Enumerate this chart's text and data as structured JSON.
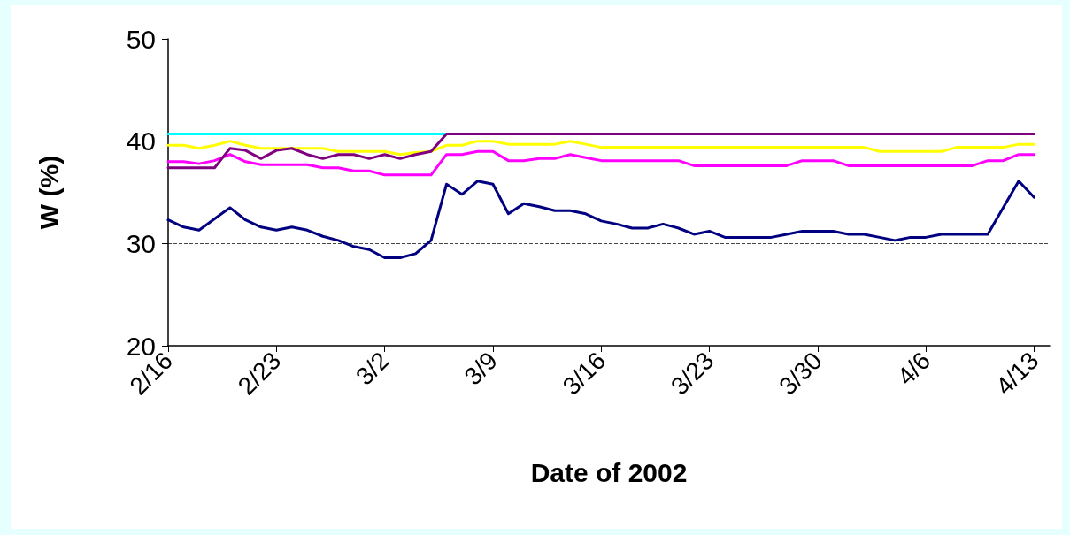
{
  "chart_data": {
    "type": "line",
    "xlabel": "Date of 2002",
    "ylabel": "W (%)",
    "x": [
      "2002-02-16",
      "2002-02-17",
      "2002-02-18",
      "2002-02-19",
      "2002-02-20",
      "2002-02-21",
      "2002-02-22",
      "2002-02-23",
      "2002-02-24",
      "2002-02-25",
      "2002-02-26",
      "2002-02-27",
      "2002-02-28",
      "2002-03-01",
      "2002-03-02",
      "2002-03-03",
      "2002-03-04",
      "2002-03-05",
      "2002-03-06",
      "2002-03-07",
      "2002-03-08",
      "2002-03-09",
      "2002-03-10",
      "2002-03-11",
      "2002-03-12",
      "2002-03-13",
      "2002-03-14",
      "2002-03-15",
      "2002-03-16",
      "2002-03-17",
      "2002-03-18",
      "2002-03-19",
      "2002-03-20",
      "2002-03-21",
      "2002-03-22",
      "2002-03-23",
      "2002-03-24",
      "2002-03-25",
      "2002-03-26",
      "2002-03-27",
      "2002-03-28",
      "2002-03-29",
      "2002-03-30",
      "2002-03-31",
      "2002-04-01",
      "2002-04-02",
      "2002-04-03",
      "2002-04-04",
      "2002-04-05",
      "2002-04-06",
      "2002-04-07",
      "2002-04-08",
      "2002-04-09",
      "2002-04-10",
      "2002-04-11",
      "2002-04-12",
      "2002-04-13"
    ],
    "series": [
      {
        "color": "#00ffff",
        "values": [
          40.7,
          40.7,
          40.7,
          40.7,
          40.7,
          40.7,
          40.7,
          40.7,
          40.7,
          40.7,
          40.7,
          40.7,
          40.7,
          40.7,
          40.7,
          40.7,
          40.7,
          40.7,
          40.7,
          null,
          null,
          null,
          null,
          null,
          null,
          null,
          null,
          null,
          null,
          null,
          null,
          null,
          null,
          null,
          null,
          null,
          null,
          null,
          null,
          null,
          null,
          null,
          null,
          null,
          null,
          null,
          null,
          null,
          null,
          null,
          null,
          null,
          null,
          null,
          null,
          null,
          null
        ]
      },
      {
        "color": "#ffff00",
        "values": [
          39.6,
          39.6,
          39.3,
          39.6,
          40.0,
          39.6,
          39.3,
          39.3,
          39.3,
          39.3,
          39.3,
          39.0,
          39.0,
          39.0,
          39.0,
          38.7,
          38.9,
          39.0,
          39.6,
          39.6,
          40.0,
          40.0,
          39.7,
          39.7,
          39.7,
          39.7,
          40.0,
          39.7,
          39.4,
          39.4,
          39.4,
          39.4,
          39.4,
          39.4,
          39.4,
          39.4,
          39.4,
          39.4,
          39.4,
          39.4,
          39.4,
          39.4,
          39.4,
          39.4,
          39.4,
          39.4,
          39.0,
          39.0,
          39.0,
          39.0,
          39.0,
          39.4,
          39.4,
          39.4,
          39.4,
          39.7,
          39.7
        ]
      },
      {
        "color": "#ff00ff",
        "values": [
          38.0,
          38.0,
          37.8,
          38.1,
          38.7,
          38.0,
          37.7,
          37.7,
          37.7,
          37.7,
          37.4,
          37.4,
          37.1,
          37.1,
          36.7,
          36.7,
          36.7,
          36.7,
          38.7,
          38.7,
          39.0,
          39.0,
          38.1,
          38.1,
          38.3,
          38.3,
          38.7,
          38.4,
          38.1,
          38.1,
          38.1,
          38.1,
          38.1,
          38.1,
          37.6,
          37.6,
          37.6,
          37.6,
          37.6,
          37.6,
          37.6,
          38.1,
          38.1,
          38.1,
          37.6,
          37.6,
          37.6,
          37.6,
          37.6,
          37.6,
          37.6,
          37.6,
          37.6,
          38.1,
          38.1,
          38.7,
          38.7
        ]
      },
      {
        "color": "#800080",
        "values": [
          37.4,
          37.4,
          37.4,
          37.4,
          39.3,
          39.1,
          38.3,
          39.1,
          39.3,
          38.7,
          38.3,
          38.7,
          38.7,
          38.3,
          38.7,
          38.3,
          38.7,
          39.0,
          40.7,
          40.7,
          40.7,
          40.7,
          40.7,
          40.7,
          40.7,
          40.7,
          40.7,
          40.7,
          40.7,
          40.7,
          40.7,
          40.7,
          40.7,
          40.7,
          40.7,
          40.7,
          40.7,
          40.7,
          40.7,
          40.7,
          40.7,
          40.7,
          40.7,
          40.7,
          40.7,
          40.7,
          40.7,
          40.7,
          40.7,
          40.7,
          40.7,
          40.7,
          40.7,
          40.7,
          40.7,
          40.7,
          40.7
        ]
      },
      {
        "color": "#000080",
        "values": [
          32.3,
          31.6,
          31.3,
          32.4,
          33.5,
          32.3,
          31.6,
          31.3,
          31.6,
          31.3,
          30.7,
          30.3,
          29.7,
          29.4,
          28.6,
          28.6,
          29.0,
          30.3,
          35.8,
          34.8,
          36.1,
          35.8,
          32.9,
          33.9,
          33.6,
          33.2,
          33.2,
          32.9,
          32.2,
          31.9,
          31.5,
          31.5,
          31.9,
          31.5,
          30.9,
          31.2,
          30.6,
          30.6,
          30.6,
          30.6,
          30.9,
          31.2,
          31.2,
          31.2,
          30.9,
          30.9,
          30.6,
          30.3,
          30.6,
          30.6,
          30.9,
          30.9,
          30.9,
          30.9,
          33.5,
          36.1,
          34.5
        ]
      }
    ],
    "xlim": [
      "2002-02-16",
      "2002-04-14"
    ],
    "xticks": [
      {
        "value": "2002-02-16",
        "label": "2/16"
      },
      {
        "value": "2002-02-23",
        "label": "2/23"
      },
      {
        "value": "2002-03-02",
        "label": "3/2"
      },
      {
        "value": "2002-03-09",
        "label": "3/9"
      },
      {
        "value": "2002-03-16",
        "label": "3/16"
      },
      {
        "value": "2002-03-23",
        "label": "3/23"
      },
      {
        "value": "2002-03-30",
        "label": "3/30"
      },
      {
        "value": "2002-04-06",
        "label": "4/6"
      },
      {
        "value": "2002-04-13",
        "label": "4/13"
      }
    ],
    "ylim": [
      20,
      50
    ],
    "yticks": [
      20,
      30,
      40,
      50
    ],
    "grid": "y",
    "marker": "none",
    "line_style": "solid"
  }
}
